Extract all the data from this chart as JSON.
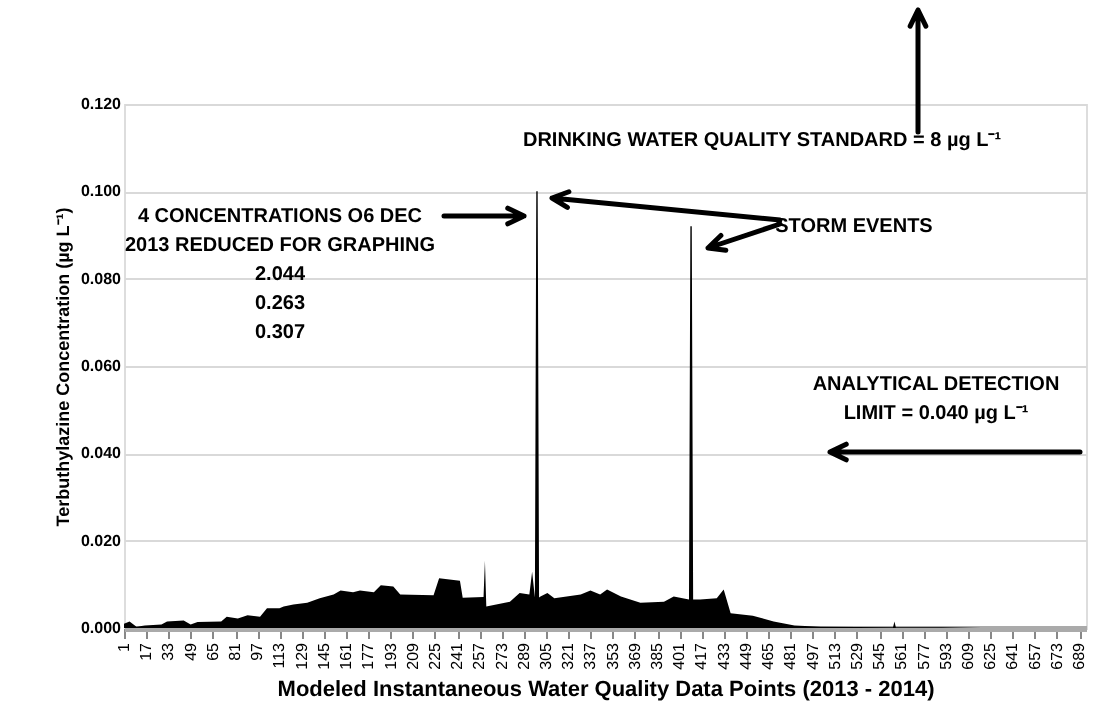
{
  "chart_data": {
    "type": "area",
    "xlabel": "Modeled Instantaneous Water Quality Data Points (2013 - 2014)",
    "ylabel": "Terbuthylazine Concentration (µg L⁻¹)",
    "annotations": [
      "4 CONCENTRATIONS O6 DEC\n2013 REDUCED FOR GRAPHING\n2.044\n0.263\n0.307",
      "STORM EVENTS",
      "DRINKING WATER QUALITY STANDARD = 8 µg L⁻¹",
      "ANALYTICAL DETECTION\nLIMIT = 0.040 µg L⁻¹"
    ],
    "x": [
      1,
      5,
      10,
      16,
      28,
      32,
      44,
      49,
      54,
      71,
      75,
      83,
      90,
      99,
      104,
      113,
      116,
      123,
      133,
      142,
      152,
      157,
      166,
      171,
      181,
      186,
      195,
      200,
      224,
      228,
      243,
      245,
      260,
      261,
      262,
      279,
      286,
      293,
      295,
      297,
      298,
      299,
      300,
      301,
      306,
      311,
      330,
      337,
      344,
      349,
      359,
      373,
      390,
      397,
      408,
      409,
      410,
      411,
      416,
      428,
      433,
      438,
      454,
      469,
      484,
      503,
      555,
      556,
      557,
      590,
      619,
      693
    ],
    "values": [
      0.001,
      0.0015,
      0.0003,
      0.0006,
      0.0008,
      0.0015,
      0.0017,
      0.0008,
      0.0014,
      0.0015,
      0.0026,
      0.0022,
      0.0029,
      0.0026,
      0.0045,
      0.0045,
      0.0049,
      0.0054,
      0.0058,
      0.0068,
      0.0077,
      0.0086,
      0.0082,
      0.0086,
      0.0082,
      0.0098,
      0.0095,
      0.0077,
      0.0075,
      0.0114,
      0.0108,
      0.0069,
      0.0071,
      0.0154,
      0.0049,
      0.006,
      0.008,
      0.0077,
      0.0129,
      0.007,
      0.1,
      0.1,
      0.007,
      0.0072,
      0.008,
      0.0068,
      0.0077,
      0.0086,
      0.0077,
      0.0088,
      0.0072,
      0.0058,
      0.006,
      0.0072,
      0.0065,
      0.092,
      0.092,
      0.0065,
      0.0065,
      0.0068,
      0.0088,
      0.0034,
      0.0028,
      0.0015,
      0.0006,
      0.0003,
      0.0002,
      0.0015,
      0.0002,
      0.0002,
      0,
      0
    ],
    "color": "#000000",
    "xlim": [
      1,
      694
    ],
    "xticks": [
      1,
      17,
      33,
      49,
      65,
      81,
      97,
      113,
      129,
      145,
      161,
      177,
      193,
      209,
      225,
      241,
      257,
      273,
      289,
      305,
      321,
      337,
      353,
      369,
      385,
      401,
      417,
      433,
      449,
      465,
      481,
      497,
      513,
      529,
      545,
      561,
      577,
      593,
      609,
      625,
      641,
      657,
      673,
      689
    ],
    "ylim": [
      0,
      0.12
    ],
    "yticks": [
      {
        "value": 0,
        "label": "0.000"
      },
      {
        "value": 0.02,
        "label": "0.020"
      },
      {
        "value": 0.04,
        "label": "0.040"
      },
      {
        "value": 0.06,
        "label": "0.060"
      },
      {
        "value": 0.08,
        "label": "0.080"
      },
      {
        "value": 0.1,
        "label": "0.100"
      },
      {
        "value": 0.12,
        "label": "0.120"
      }
    ],
    "grid": "y"
  }
}
